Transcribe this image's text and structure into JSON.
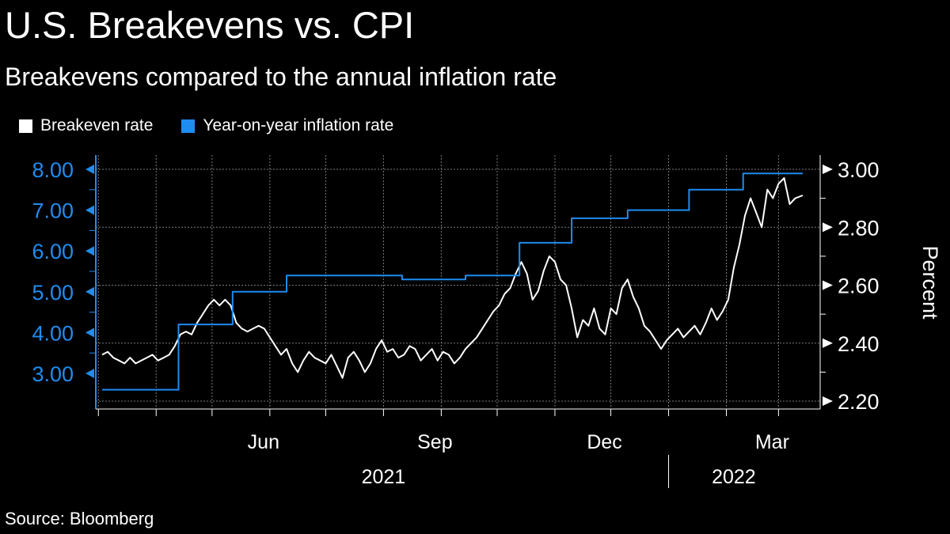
{
  "title": "U.S. Breakevens vs. CPI",
  "subtitle": "Breakevens compared to the annual inflation rate",
  "source": "Source: Bloomberg",
  "colors": {
    "background": "#000000",
    "breakeven": "#ffffff",
    "inflation": "#1f8cf0",
    "grid": "#7a7a7a",
    "text": "#ffffff"
  },
  "chart_data": {
    "type": "line",
    "title": "U.S. Breakevens vs. CPI",
    "subtitle": "Breakevens compared to the annual inflation rate",
    "x_range": [
      "2021-03-03",
      "2022-03-14"
    ],
    "x_ticks": [
      {
        "date": "2021-03-01",
        "label": ""
      },
      {
        "date": "2021-04-01",
        "label": ""
      },
      {
        "date": "2021-05-01",
        "label": ""
      },
      {
        "date": "2021-06-01",
        "label": "Jun"
      },
      {
        "date": "2021-07-01",
        "label": ""
      },
      {
        "date": "2021-08-01",
        "label": ""
      },
      {
        "date": "2021-09-01",
        "label": "Sep"
      },
      {
        "date": "2021-10-01",
        "label": ""
      },
      {
        "date": "2021-11-01",
        "label": ""
      },
      {
        "date": "2021-12-01",
        "label": "Dec"
      },
      {
        "date": "2022-01-01",
        "label": ""
      },
      {
        "date": "2022-02-01",
        "label": ""
      },
      {
        "date": "2022-03-01",
        "label": "Mar"
      }
    ],
    "year_labels": [
      {
        "label": "2021",
        "center": "2021-08-01"
      },
      {
        "label": "2022",
        "center": "2022-02-05"
      }
    ],
    "year_divider": "2022-01-01",
    "left_axis": {
      "range": [
        2.3,
        8.2
      ],
      "ticks": [
        3,
        4,
        5,
        6,
        7,
        8
      ],
      "tick_labels": [
        "3.00",
        "4.00",
        "5.00",
        "6.00",
        "7.00",
        "8.00"
      ],
      "color": "#1f8cf0"
    },
    "right_axis": {
      "label": "Percent",
      "range": [
        2.18,
        3.02
      ],
      "ticks": [
        2.2,
        2.4,
        2.6,
        2.8,
        3.0
      ],
      "tick_labels": [
        "2.20",
        "2.40",
        "2.60",
        "2.80",
        "3.00"
      ],
      "color": "#ffffff"
    },
    "grid": true,
    "legend_position": "top-left",
    "series": [
      {
        "name": "Breakeven rate",
        "axis": "right",
        "color": "#ffffff",
        "points": [
          [
            "2021-03-03",
            2.36
          ],
          [
            "2021-03-06",
            2.37
          ],
          [
            "2021-03-09",
            2.35
          ],
          [
            "2021-03-12",
            2.34
          ],
          [
            "2021-03-15",
            2.33
          ],
          [
            "2021-03-18",
            2.35
          ],
          [
            "2021-03-21",
            2.33
          ],
          [
            "2021-03-24",
            2.34
          ],
          [
            "2021-03-27",
            2.35
          ],
          [
            "2021-03-30",
            2.36
          ],
          [
            "2021-04-02",
            2.34
          ],
          [
            "2021-04-05",
            2.35
          ],
          [
            "2021-04-08",
            2.36
          ],
          [
            "2021-04-11",
            2.39
          ],
          [
            "2021-04-14",
            2.43
          ],
          [
            "2021-04-17",
            2.44
          ],
          [
            "2021-04-20",
            2.43
          ],
          [
            "2021-04-23",
            2.47
          ],
          [
            "2021-04-26",
            2.5
          ],
          [
            "2021-04-29",
            2.53
          ],
          [
            "2021-05-02",
            2.55
          ],
          [
            "2021-05-05",
            2.53
          ],
          [
            "2021-05-08",
            2.55
          ],
          [
            "2021-05-11",
            2.53
          ],
          [
            "2021-05-14",
            2.47
          ],
          [
            "2021-05-17",
            2.45
          ],
          [
            "2021-05-20",
            2.44
          ],
          [
            "2021-05-23",
            2.45
          ],
          [
            "2021-05-26",
            2.46
          ],
          [
            "2021-05-29",
            2.45
          ],
          [
            "2021-06-01",
            2.42
          ],
          [
            "2021-06-04",
            2.39
          ],
          [
            "2021-06-07",
            2.36
          ],
          [
            "2021-06-10",
            2.38
          ],
          [
            "2021-06-13",
            2.33
          ],
          [
            "2021-06-16",
            2.3
          ],
          [
            "2021-06-19",
            2.34
          ],
          [
            "2021-06-22",
            2.37
          ],
          [
            "2021-06-25",
            2.35
          ],
          [
            "2021-06-28",
            2.34
          ],
          [
            "2021-07-01",
            2.33
          ],
          [
            "2021-07-04",
            2.36
          ],
          [
            "2021-07-07",
            2.32
          ],
          [
            "2021-07-10",
            2.28
          ],
          [
            "2021-07-13",
            2.35
          ],
          [
            "2021-07-16",
            2.37
          ],
          [
            "2021-07-19",
            2.34
          ],
          [
            "2021-07-22",
            2.3
          ],
          [
            "2021-07-25",
            2.33
          ],
          [
            "2021-07-28",
            2.38
          ],
          [
            "2021-07-31",
            2.41
          ],
          [
            "2021-08-03",
            2.37
          ],
          [
            "2021-08-06",
            2.38
          ],
          [
            "2021-08-09",
            2.35
          ],
          [
            "2021-08-12",
            2.36
          ],
          [
            "2021-08-15",
            2.39
          ],
          [
            "2021-08-18",
            2.38
          ],
          [
            "2021-08-21",
            2.34
          ],
          [
            "2021-08-24",
            2.36
          ],
          [
            "2021-08-27",
            2.38
          ],
          [
            "2021-08-30",
            2.34
          ],
          [
            "2021-09-02",
            2.37
          ],
          [
            "2021-09-05",
            2.36
          ],
          [
            "2021-09-08",
            2.33
          ],
          [
            "2021-09-11",
            2.35
          ],
          [
            "2021-09-14",
            2.38
          ],
          [
            "2021-09-17",
            2.4
          ],
          [
            "2021-09-20",
            2.42
          ],
          [
            "2021-09-23",
            2.45
          ],
          [
            "2021-09-26",
            2.48
          ],
          [
            "2021-09-29",
            2.51
          ],
          [
            "2021-10-02",
            2.53
          ],
          [
            "2021-10-05",
            2.57
          ],
          [
            "2021-10-08",
            2.59
          ],
          [
            "2021-10-11",
            2.64
          ],
          [
            "2021-10-14",
            2.68
          ],
          [
            "2021-10-17",
            2.64
          ],
          [
            "2021-10-20",
            2.55
          ],
          [
            "2021-10-23",
            2.58
          ],
          [
            "2021-10-26",
            2.65
          ],
          [
            "2021-10-29",
            2.7
          ],
          [
            "2021-11-01",
            2.68
          ],
          [
            "2021-11-04",
            2.62
          ],
          [
            "2021-11-07",
            2.6
          ],
          [
            "2021-11-10",
            2.52
          ],
          [
            "2021-11-13",
            2.42
          ],
          [
            "2021-11-16",
            2.48
          ],
          [
            "2021-11-19",
            2.46
          ],
          [
            "2021-11-22",
            2.52
          ],
          [
            "2021-11-25",
            2.45
          ],
          [
            "2021-11-28",
            2.43
          ],
          [
            "2021-12-01",
            2.52
          ],
          [
            "2021-12-04",
            2.5
          ],
          [
            "2021-12-07",
            2.59
          ],
          [
            "2021-12-10",
            2.62
          ],
          [
            "2021-12-13",
            2.56
          ],
          [
            "2021-12-16",
            2.52
          ],
          [
            "2021-12-19",
            2.46
          ],
          [
            "2021-12-22",
            2.44
          ],
          [
            "2021-12-25",
            2.41
          ],
          [
            "2021-12-28",
            2.38
          ],
          [
            "2021-12-31",
            2.41
          ],
          [
            "2022-01-03",
            2.43
          ],
          [
            "2022-01-06",
            2.45
          ],
          [
            "2022-01-09",
            2.42
          ],
          [
            "2022-01-12",
            2.44
          ],
          [
            "2022-01-15",
            2.46
          ],
          [
            "2022-01-18",
            2.43
          ],
          [
            "2022-01-21",
            2.47
          ],
          [
            "2022-01-24",
            2.52
          ],
          [
            "2022-01-27",
            2.48
          ],
          [
            "2022-01-30",
            2.51
          ],
          [
            "2022-02-02",
            2.55
          ],
          [
            "2022-02-05",
            2.66
          ],
          [
            "2022-02-08",
            2.74
          ],
          [
            "2022-02-11",
            2.84
          ],
          [
            "2022-02-14",
            2.9
          ],
          [
            "2022-02-17",
            2.85
          ],
          [
            "2022-02-20",
            2.8
          ],
          [
            "2022-02-23",
            2.93
          ],
          [
            "2022-02-26",
            2.9
          ],
          [
            "2022-03-01",
            2.95
          ],
          [
            "2022-03-04",
            2.97
          ],
          [
            "2022-03-07",
            2.88
          ],
          [
            "2022-03-10",
            2.9
          ],
          [
            "2022-03-14",
            2.91
          ]
        ]
      },
      {
        "name": "Year-on-year inflation rate",
        "axis": "left",
        "color": "#1f8cf0",
        "points": [
          [
            "2021-03-03",
            2.6
          ],
          [
            "2021-04-13",
            2.6
          ],
          [
            "2021-04-13",
            4.2
          ],
          [
            "2021-05-12",
            4.2
          ],
          [
            "2021-05-12",
            5.0
          ],
          [
            "2021-06-10",
            5.0
          ],
          [
            "2021-06-10",
            5.4
          ],
          [
            "2021-07-13",
            5.4
          ],
          [
            "2021-07-13",
            5.4
          ],
          [
            "2021-08-11",
            5.4
          ],
          [
            "2021-08-11",
            5.3
          ],
          [
            "2021-09-14",
            5.3
          ],
          [
            "2021-09-14",
            5.4
          ],
          [
            "2021-10-13",
            5.4
          ],
          [
            "2021-10-13",
            6.2
          ],
          [
            "2021-11-10",
            6.2
          ],
          [
            "2021-11-10",
            6.8
          ],
          [
            "2021-12-10",
            6.8
          ],
          [
            "2021-12-10",
            7.0
          ],
          [
            "2022-01-12",
            7.0
          ],
          [
            "2022-01-12",
            7.5
          ],
          [
            "2022-02-10",
            7.5
          ],
          [
            "2022-02-10",
            7.9
          ],
          [
            "2022-03-14",
            7.9
          ]
        ]
      }
    ]
  },
  "legend": [
    {
      "label": "Breakeven rate",
      "color": "#ffffff"
    },
    {
      "label": "Year-on-year inflation rate",
      "color": "#1f8cf0"
    }
  ]
}
